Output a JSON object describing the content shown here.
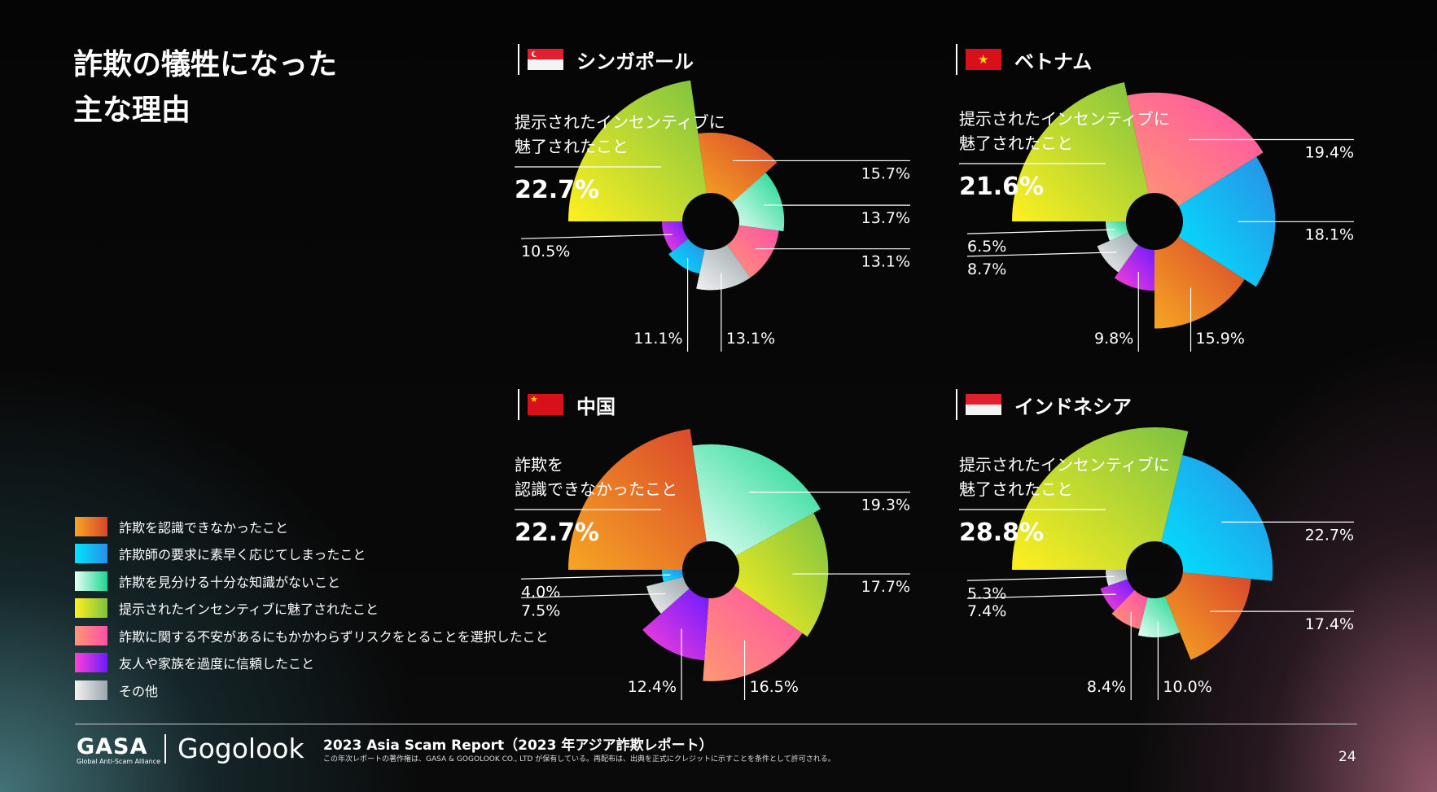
{
  "title": [
    "詐欺の犠牲になった",
    "主な理由"
  ],
  "legend": [
    {
      "label": "詐欺を認識できなかったこと",
      "colors": [
        "#f6a623",
        "#d9452c"
      ]
    },
    {
      "label": "詐欺師の要求に素早く応じてしまったこと",
      "colors": [
        "#00e5ff",
        "#2a8ee6"
      ]
    },
    {
      "label": "詐欺を見分ける十分な知識がないこと",
      "colors": [
        "#e6fff5",
        "#19d68f"
      ]
    },
    {
      "label": "提示されたインセンティブに魅了されたこと",
      "colors": [
        "#fff01f",
        "#7cc242"
      ]
    },
    {
      "label": "詐欺に関する不安があるにもかかわらずリスクをとることを選択したこと",
      "colors": [
        "#ff9872",
        "#ff4fa8"
      ]
    },
    {
      "label": "友人や家族を過度に信頼したこと",
      "colors": [
        "#ff40d6",
        "#6b1bff"
      ]
    },
    {
      "label": "その他",
      "colors": [
        "#f2f2f2",
        "#9aa6ab"
      ]
    }
  ],
  "panels": [
    {
      "country": "シンガポール",
      "flag": "sg"
    },
    {
      "country": "ベトナム",
      "flag": "vn"
    },
    {
      "country": "中国",
      "flag": "cn"
    },
    {
      "country": "インドネシア",
      "flag": "id"
    }
  ],
  "chart_data": [
    {
      "type": "pie",
      "title": "シンガポール",
      "categories": [
        "提示されたインセンティブに魅了されたこと",
        "詐欺を認識できなかったこと",
        "詐欺を見分ける十分な知識がないこと",
        "詐欺に関する不安があるにもかかわらずリスクをとることを選択したこと",
        "その他",
        "詐欺師の要求に素早く応じてしまったこと",
        "友人や家族を過度に信頼したこと"
      ],
      "values": [
        22.7,
        15.7,
        13.7,
        13.1,
        13.1,
        11.1,
        10.5
      ],
      "labels": [
        "22.7%",
        "15.7%",
        "13.7%",
        "13.1%",
        "13.1%",
        "11.1%",
        "10.5%"
      ],
      "highlight": [
        "提示されたインセンティブに",
        "魅了されたこと"
      ]
    },
    {
      "type": "pie",
      "title": "ベトナム",
      "categories": [
        "提示されたインセンティブに魅了されたこと",
        "詐欺に関する不安があるにもかかわらずリスクをとることを選択したこと",
        "詐欺師の要求に素早く応じてしまったこと",
        "詐欺を認識できなかったこと",
        "友人や家族を過度に信頼したこと",
        "その他",
        "詐欺を見分ける十分な知識がないこと"
      ],
      "values": [
        21.6,
        19.4,
        18.1,
        15.9,
        9.8,
        8.7,
        6.5
      ],
      "labels": [
        "21.6%",
        "19.4%",
        "18.1%",
        "15.9%",
        "9.8%",
        "8.7%",
        "6.5%"
      ],
      "highlight": [
        "提示されたインセンティブに",
        "魅了されたこと"
      ]
    },
    {
      "type": "pie",
      "title": "中国",
      "categories": [
        "詐欺を認識できなかったこと",
        "詐欺を見分ける十分な知識がないこと",
        "提示されたインセンティブに魅了されたこと",
        "詐欺に関する不安があるにもかかわらずリスクをとることを選択したこと",
        "友人や家族を過度に信頼したこと",
        "その他",
        "詐欺師の要求に素早く応じてしまったこと"
      ],
      "values": [
        22.7,
        19.3,
        17.7,
        16.5,
        12.4,
        7.5,
        4.0
      ],
      "labels": [
        "22.7%",
        "19.3%",
        "17.7%",
        "16.5%",
        "12.4%",
        "7.5%",
        "4.0%"
      ],
      "highlight": [
        "詐欺を",
        "認識できなかったこと"
      ]
    },
    {
      "type": "pie",
      "title": "インドネシア",
      "categories": [
        "提示されたインセンティブに魅了されたこと",
        "詐欺師の要求に素早く応じてしまったこと",
        "詐欺を認識できなかったこと",
        "詐欺を見分ける十分な知識がないこと",
        "詐欺に関する不安があるにもかかわらずリスクをとることを選択したこと",
        "友人や家族を過度に信頼したこと",
        "その他"
      ],
      "values": [
        28.8,
        22.7,
        17.4,
        10.0,
        8.4,
        7.4,
        5.3
      ],
      "labels": [
        "28.8%",
        "22.7%",
        "17.4%",
        "10.0%",
        "8.4%",
        "7.4%",
        "5.3%"
      ],
      "highlight": [
        "提示されたインセンティブに",
        "魅了されたこと"
      ]
    }
  ],
  "footer": {
    "gasa": "GASA",
    "gasa_sub": "Global Anti-Scam Alliance",
    "gogolook": "Gogolook",
    "report_title": "2023 Asia Scam Report（2023 年アジア詐欺レポート）",
    "report_note": "この年次レポートの著作権は、GASA & GOGOLOOK CO., LTD が保有している。再配布は、出典を正式にクレジットに示すことを条件として許可される。",
    "page": "24"
  }
}
